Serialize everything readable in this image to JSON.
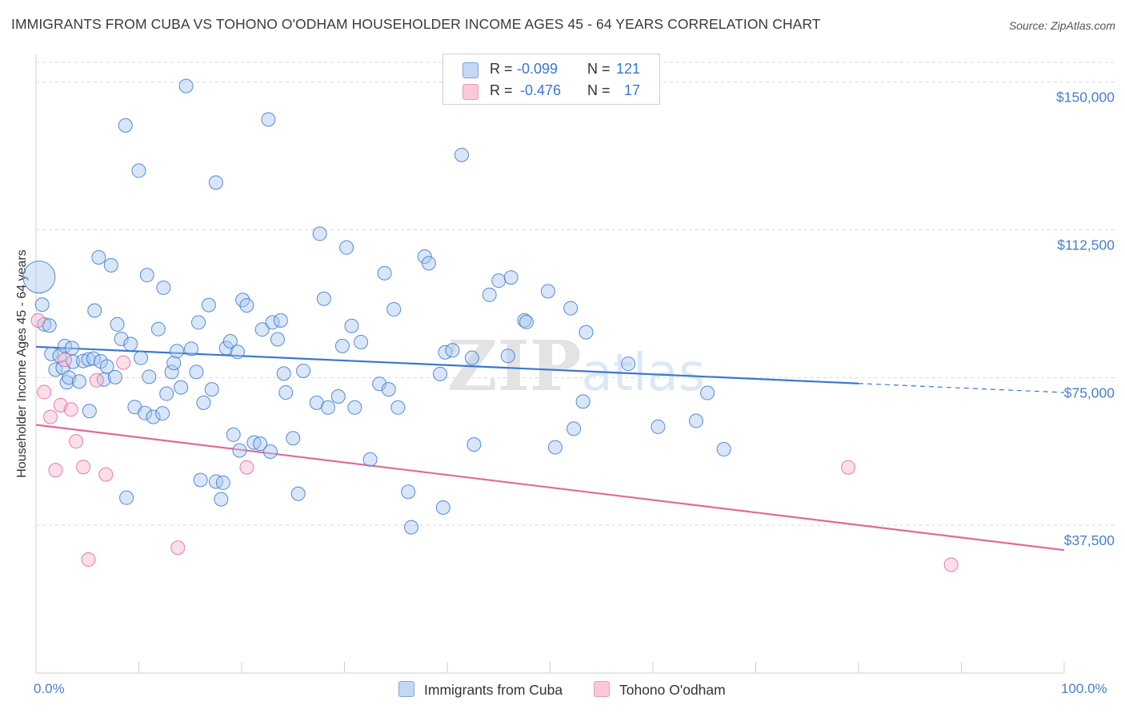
{
  "title": "IMMIGRANTS FROM CUBA VS TOHONO O'ODHAM HOUSEHOLDER INCOME AGES 45 - 64 YEARS CORRELATION CHART",
  "source": "Source: ZipAtlas.com",
  "watermark": "ZIPatlas",
  "colors": {
    "blue": "#3b78d0",
    "blue_fill": "#a9c8f0",
    "pink": "#e0699a",
    "pink_fill": "#f6b9cc",
    "grid": "#d9d9d9",
    "axis_text": "#4a7fc9"
  },
  "stats": [
    {
      "r_label": "R =",
      "r_value": "-0.099",
      "n_label": "N =",
      "n_value": "121"
    },
    {
      "r_label": "R =",
      "r_value": "-0.476",
      "n_label": "N =",
      "n_value": "17"
    }
  ],
  "legend": [
    "Immigrants from Cuba",
    "Tohono O'odham"
  ],
  "chart_data": {
    "type": "scatter",
    "ylabel": "Householder Income Ages 45 - 64 years",
    "xlim": [
      0,
      100
    ],
    "ylim": [
      0,
      155000
    ],
    "y_ticks": [
      37500,
      75000,
      112500,
      150000
    ],
    "y_tick_labels": [
      "$37,500",
      "$75,000",
      "$112,500",
      "$150,000"
    ],
    "x_tick_labels": [
      "0.0%",
      "100.0%"
    ],
    "grid": true,
    "legend_position": "bottom",
    "series": [
      {
        "name": "Immigrants from Cuba",
        "color": "#3b78d0",
        "points": [
          [
            0.3,
            100500
          ],
          [
            0.6,
            93500
          ],
          [
            0.8,
            88500
          ],
          [
            1.3,
            88200
          ],
          [
            1.5,
            81000
          ],
          [
            1.9,
            77000
          ],
          [
            2.3,
            80500
          ],
          [
            2.6,
            77500
          ],
          [
            2.8,
            83000
          ],
          [
            3.0,
            73800
          ],
          [
            3.2,
            75000
          ],
          [
            3.5,
            82500
          ],
          [
            3.6,
            79000
          ],
          [
            4.2,
            74000
          ],
          [
            4.6,
            79200
          ],
          [
            5.1,
            79600
          ],
          [
            5.2,
            66500
          ],
          [
            5.6,
            79800
          ],
          [
            5.7,
            92000
          ],
          [
            6.1,
            105500
          ],
          [
            6.3,
            79100
          ],
          [
            6.6,
            74500
          ],
          [
            6.9,
            77800
          ],
          [
            7.3,
            103500
          ],
          [
            7.7,
            75100
          ],
          [
            7.9,
            88500
          ],
          [
            8.3,
            84800
          ],
          [
            8.7,
            139000
          ],
          [
            8.8,
            44500
          ],
          [
            9.2,
            83500
          ],
          [
            9.6,
            67500
          ],
          [
            10.0,
            127500
          ],
          [
            10.2,
            80000
          ],
          [
            10.6,
            66000
          ],
          [
            10.8,
            101000
          ],
          [
            11.0,
            75200
          ],
          [
            11.4,
            65000
          ],
          [
            11.9,
            87300
          ],
          [
            12.3,
            65900
          ],
          [
            12.4,
            97800
          ],
          [
            12.7,
            70900
          ],
          [
            13.2,
            76400
          ],
          [
            13.4,
            78700
          ],
          [
            13.7,
            81700
          ],
          [
            14.1,
            72500
          ],
          [
            14.6,
            149000
          ],
          [
            15.1,
            82300
          ],
          [
            15.6,
            76400
          ],
          [
            15.8,
            89000
          ],
          [
            16.0,
            49000
          ],
          [
            16.3,
            68600
          ],
          [
            16.8,
            93400
          ],
          [
            17.1,
            72000
          ],
          [
            17.5,
            48600
          ],
          [
            17.5,
            124500
          ],
          [
            18.0,
            44100
          ],
          [
            18.2,
            48300
          ],
          [
            18.5,
            82500
          ],
          [
            18.9,
            84200
          ],
          [
            19.2,
            60500
          ],
          [
            19.6,
            81500
          ],
          [
            19.8,
            56500
          ],
          [
            20.1,
            94700
          ],
          [
            20.5,
            93300
          ],
          [
            21.2,
            58500
          ],
          [
            21.8,
            58200
          ],
          [
            22.0,
            87200
          ],
          [
            22.6,
            140500
          ],
          [
            22.8,
            56200
          ],
          [
            23.0,
            89000
          ],
          [
            23.5,
            84700
          ],
          [
            23.8,
            89500
          ],
          [
            24.1,
            76000
          ],
          [
            24.3,
            71200
          ],
          [
            25.0,
            59600
          ],
          [
            25.5,
            45500
          ],
          [
            26.0,
            76700
          ],
          [
            27.3,
            68600
          ],
          [
            27.6,
            111500
          ],
          [
            28.0,
            95000
          ],
          [
            28.4,
            67400
          ],
          [
            29.4,
            70200
          ],
          [
            29.8,
            83000
          ],
          [
            30.2,
            108000
          ],
          [
            30.7,
            88100
          ],
          [
            31.0,
            67400
          ],
          [
            31.6,
            84000
          ],
          [
            32.5,
            54200
          ],
          [
            33.4,
            73400
          ],
          [
            33.9,
            101500
          ],
          [
            34.3,
            72000
          ],
          [
            34.8,
            92300
          ],
          [
            35.2,
            67400
          ],
          [
            36.2,
            46000
          ],
          [
            36.5,
            37000
          ],
          [
            37.8,
            105700
          ],
          [
            38.2,
            104000
          ],
          [
            39.3,
            75900
          ],
          [
            39.6,
            42000
          ],
          [
            39.8,
            81400
          ],
          [
            40.5,
            81900
          ],
          [
            41.4,
            131500
          ],
          [
            42.4,
            80000
          ],
          [
            42.6,
            58000
          ],
          [
            44.1,
            96000
          ],
          [
            45.0,
            99600
          ],
          [
            45.9,
            80500
          ],
          [
            46.2,
            100400
          ],
          [
            47.5,
            89500
          ],
          [
            47.7,
            89100
          ],
          [
            49.8,
            96900
          ],
          [
            50.5,
            57300
          ],
          [
            52.0,
            92600
          ],
          [
            52.3,
            62000
          ],
          [
            53.2,
            68900
          ],
          [
            53.5,
            86500
          ],
          [
            57.6,
            78500
          ],
          [
            60.5,
            62500
          ],
          [
            64.2,
            64000
          ],
          [
            65.3,
            71100
          ],
          [
            66.9,
            56800
          ]
        ]
      },
      {
        "name": "Tohono O'odham",
        "color": "#e0699a",
        "points": [
          [
            0.2,
            89500
          ],
          [
            0.8,
            71300
          ],
          [
            1.4,
            65000
          ],
          [
            1.9,
            51500
          ],
          [
            2.4,
            68000
          ],
          [
            2.8,
            79500
          ],
          [
            3.4,
            66900
          ],
          [
            3.9,
            58800
          ],
          [
            4.6,
            52300
          ],
          [
            5.1,
            28800
          ],
          [
            5.9,
            74300
          ],
          [
            6.8,
            50400
          ],
          [
            8.5,
            78800
          ],
          [
            13.8,
            31800
          ],
          [
            20.5,
            52200
          ],
          [
            79.0,
            52200
          ],
          [
            89.0,
            27500
          ]
        ]
      }
    ],
    "trend_lines": [
      {
        "name": "Immigrants from Cuba",
        "color": "#3b78d0",
        "x": [
          0,
          80
        ],
        "y": [
          82800,
          73500
        ],
        "extension_x": [
          80,
          100
        ],
        "extension_y": [
          73500,
          71200
        ]
      },
      {
        "name": "Tohono O'odham",
        "color": "#e0699a",
        "x": [
          0,
          100
        ],
        "y": [
          63000,
          31200
        ]
      }
    ]
  }
}
